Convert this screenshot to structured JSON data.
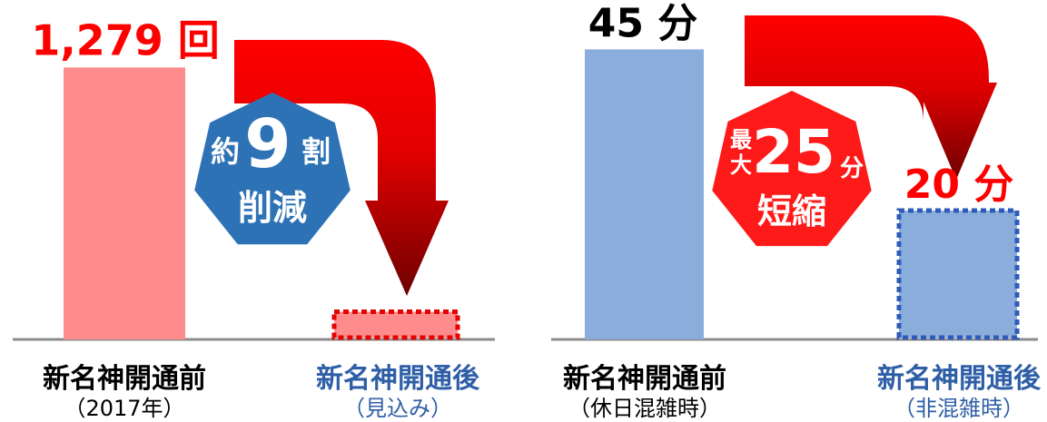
{
  "chart_data": [
    {
      "type": "bar",
      "categories": [
        "新名神開通前",
        "新名神開通後"
      ],
      "category_notes": [
        "（2017年）",
        "（見込み）"
      ],
      "values": [
        1279,
        130
      ],
      "value_labels": [
        "1,279 回",
        ""
      ],
      "estimated": [
        false,
        true
      ],
      "ylim": [
        0,
        1400
      ],
      "badge": {
        "top": "約",
        "number": "9",
        "suffix": "割",
        "bottom": "削減"
      },
      "colors": {
        "bar": "#ff8c8c",
        "estimate_border": "#e60000",
        "badge": "#2e72b6",
        "value_text": "#ff0000",
        "category_after": "#2e5fa6"
      }
    },
    {
      "type": "bar",
      "categories": [
        "新名神開通前",
        "新名神開通後"
      ],
      "category_notes": [
        "（休日混雑時）",
        "（非混雑時）"
      ],
      "values": [
        45,
        20
      ],
      "value_labels": [
        "45 分",
        "20 分"
      ],
      "estimated": [
        false,
        true
      ],
      "ylim": [
        0,
        49
      ],
      "badge": {
        "prefix_top": "最",
        "prefix_bottom": "大",
        "number": "25",
        "suffix": "分",
        "bottom": "短縮"
      },
      "colors": {
        "bar": "#8aaddc",
        "estimate_border": "#2e5bb8",
        "badge": "#ff1a1a",
        "value_text_before": "#000000",
        "value_text_after": "#ff0000",
        "category_after": "#2e5fa6"
      }
    }
  ]
}
